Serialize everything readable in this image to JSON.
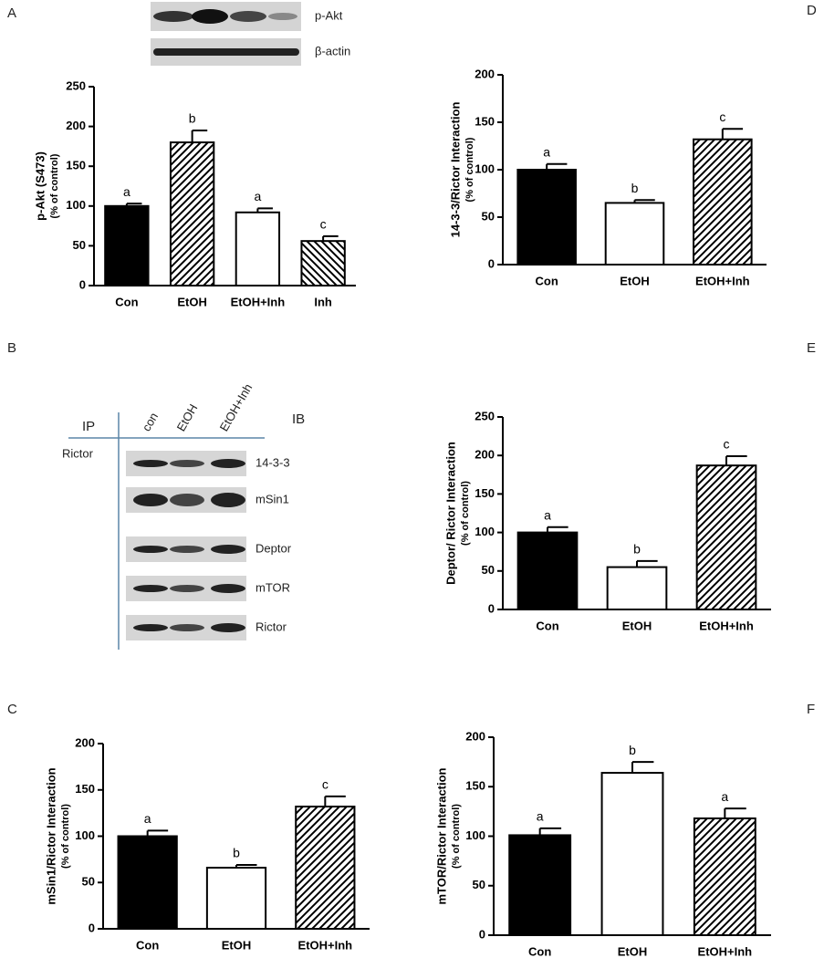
{
  "chart_data": [
    {
      "type": "bar",
      "panel": "A",
      "y_label": "p-Akt (S473)",
      "y_sublabel": "(% of control)",
      "categories": [
        "Con",
        "EtOH",
        "EtOH+Inh",
        "Inh"
      ],
      "values": [
        100,
        180,
        92,
        56
      ],
      "errors": [
        3,
        15,
        5,
        6
      ],
      "annotations": [
        "a",
        "b",
        "a",
        "c"
      ],
      "fills": [
        "black",
        "hatch",
        "white",
        "hatch-reverse"
      ],
      "ylim": [
        0,
        250
      ],
      "yticks": [
        0,
        50,
        100,
        150,
        200,
        250
      ]
    },
    {
      "type": "bar",
      "panel": "C",
      "y_label": "mSin1/Rictor Interaction",
      "y_sublabel": "(% of control)",
      "categories": [
        "Con",
        "EtOH",
        "EtOH+Inh"
      ],
      "values": [
        100,
        66,
        132
      ],
      "errors": [
        6,
        3,
        11
      ],
      "annotations": [
        "a",
        "b",
        "c"
      ],
      "fills": [
        "black",
        "white",
        "hatch"
      ],
      "ylim": [
        0,
        200
      ],
      "yticks": [
        0,
        50,
        100,
        150,
        200
      ]
    },
    {
      "type": "bar",
      "panel": "D",
      "y_label": "14-3-3/Rictor Interaction",
      "y_sublabel": "(% of control)",
      "categories": [
        "Con",
        "EtOH",
        "EtOH+Inh"
      ],
      "values": [
        100,
        65,
        132
      ],
      "errors": [
        6,
        3,
        11
      ],
      "annotations": [
        "a",
        "b",
        "c"
      ],
      "fills": [
        "black",
        "white",
        "hatch"
      ],
      "ylim": [
        0,
        200
      ],
      "yticks": [
        0,
        50,
        100,
        150,
        200
      ]
    },
    {
      "type": "bar",
      "panel": "E",
      "y_label": "Deptor/ Rictor Interaction",
      "y_sublabel": "(% of control)",
      "categories": [
        "Con",
        "EtOH",
        "EtOH+Inh"
      ],
      "values": [
        100,
        55,
        187
      ],
      "errors": [
        7,
        8,
        12
      ],
      "annotations": [
        "a",
        "b",
        "c"
      ],
      "fills": [
        "black",
        "white",
        "hatch"
      ],
      "ylim": [
        0,
        250
      ],
      "yticks": [
        0,
        50,
        100,
        150,
        200,
        250
      ]
    },
    {
      "type": "bar",
      "panel": "F",
      "y_label": "mTOR/Rictor Interaction",
      "y_sublabel": "(% of control)",
      "categories": [
        "Con",
        "EtOH",
        "EtOH+Inh"
      ],
      "values": [
        101,
        164,
        118
      ],
      "errors": [
        7,
        11,
        10
      ],
      "annotations": [
        "a",
        "b",
        "a"
      ],
      "fills": [
        "black",
        "white",
        "hatch"
      ],
      "ylim": [
        0,
        200
      ],
      "yticks": [
        0,
        50,
        100,
        150,
        200
      ]
    }
  ],
  "blot_a": {
    "rows": [
      "p-Akt",
      "β-actin"
    ]
  },
  "blot_b": {
    "panel": "B",
    "ip_header": "IP",
    "ib_header": "IB",
    "ip_target": "Rictor",
    "columns": [
      "con",
      "EtOH",
      "EtOH+Inh"
    ],
    "rows": [
      "14-3-3",
      "mSin1",
      "Deptor",
      "mTOR",
      "Rictor"
    ]
  }
}
